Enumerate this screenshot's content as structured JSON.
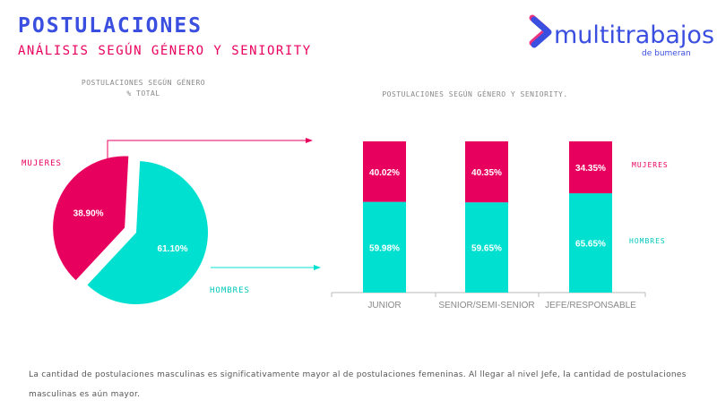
{
  "header": {
    "title": "POSTULACIONES",
    "subtitle": "ANÁLISIS SEGÚN GÉNERO Y SENIORITY"
  },
  "logo": {
    "name": "multitrabajos",
    "tagline": "de bumeran"
  },
  "colors": {
    "blue": "#3a4fe0",
    "pink": "#e8005f",
    "teal": "#00e0d0"
  },
  "chart_data": [
    {
      "type": "pie",
      "title": "POSTULACIONES SEGÚN GÉNERO",
      "subtitle": "% TOTAL",
      "slices": [
        {
          "name": "HOMBRES",
          "value": 61.1,
          "label": "61.10%"
        },
        {
          "name": "MUJERES",
          "value": 38.9,
          "label": "38.90%"
        }
      ]
    },
    {
      "type": "bar",
      "stacked": true,
      "percent": true,
      "title": "POSTULACIONES SEGÚN GÉNERO Y SENIORITY.",
      "categories": [
        "JUNIOR",
        "SENIOR/SEMI-SENIOR",
        "JEFE/RESPONSABLE"
      ],
      "series": [
        {
          "name": "HOMBRES",
          "values": [
            59.98,
            59.65,
            65.65
          ],
          "labels": [
            "59.98%",
            "59.65%",
            "65.65%"
          ]
        },
        {
          "name": "MUJERES",
          "values": [
            40.02,
            40.35,
            34.35
          ],
          "labels": [
            "40.02%",
            "40.35%",
            "34.35%"
          ]
        }
      ],
      "ylim": [
        0,
        100
      ]
    }
  ],
  "footer": {
    "text": "La cantidad de postulaciones masculinas es significativamente mayor al de postulaciones femeninas. Al llegar al nivel Jefe, la cantidad de postulaciones masculinas es aún mayor."
  }
}
